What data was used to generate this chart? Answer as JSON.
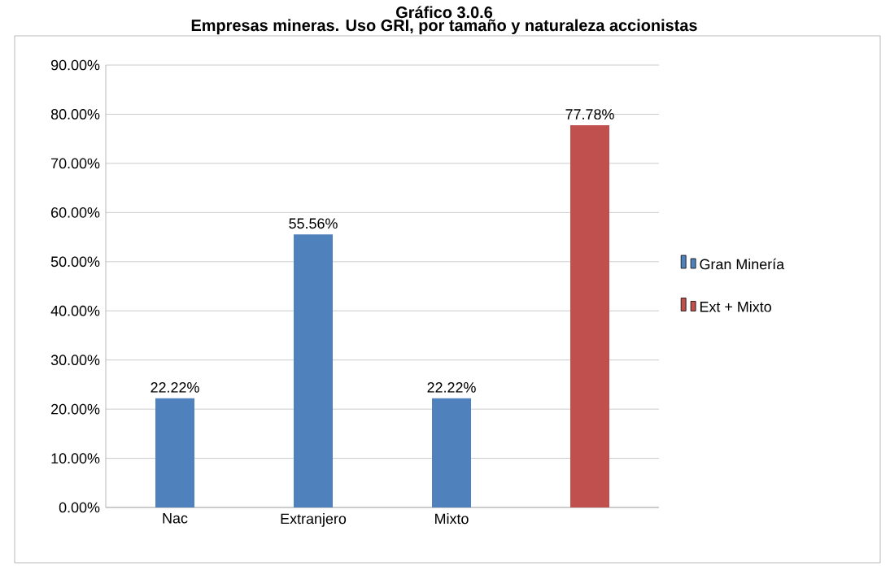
{
  "chart_data": {
    "type": "bar",
    "title": "Gráfico 3.0.6",
    "subtitle": "Empresas mineras. Uso GRI, por tamaño y naturaleza accionistas",
    "categories": [
      "Nac",
      "Extranjero",
      "Mixto",
      null
    ],
    "series": [
      {
        "name": "Gran Minería",
        "color": "#4f81bd",
        "values": [
          22.22,
          55.56,
          22.22,
          null
        ],
        "value_labels": [
          "22.22%",
          "55.56%",
          "22.22%",
          null
        ]
      },
      {
        "name": "Ext + Mixto",
        "color": "#c0504d",
        "values": [
          null,
          null,
          null,
          77.78
        ],
        "value_labels": [
          null,
          null,
          null,
          "77.78%"
        ]
      }
    ],
    "ylim": [
      0,
      90
    ],
    "yticks": [
      {
        "value": 0,
        "label": "0.00%"
      },
      {
        "value": 10,
        "label": "10.00%"
      },
      {
        "value": 20,
        "label": "20.00%"
      },
      {
        "value": 30,
        "label": "30.00%"
      },
      {
        "value": 40,
        "label": "40.00%"
      },
      {
        "value": 50,
        "label": "50.00%"
      },
      {
        "value": 60,
        "label": "60.00%"
      },
      {
        "value": 70,
        "label": "70.00%"
      },
      {
        "value": 80,
        "label": "80.00%"
      },
      {
        "value": 90,
        "label": "90.00%"
      }
    ],
    "grid": "y",
    "legend": "right"
  }
}
